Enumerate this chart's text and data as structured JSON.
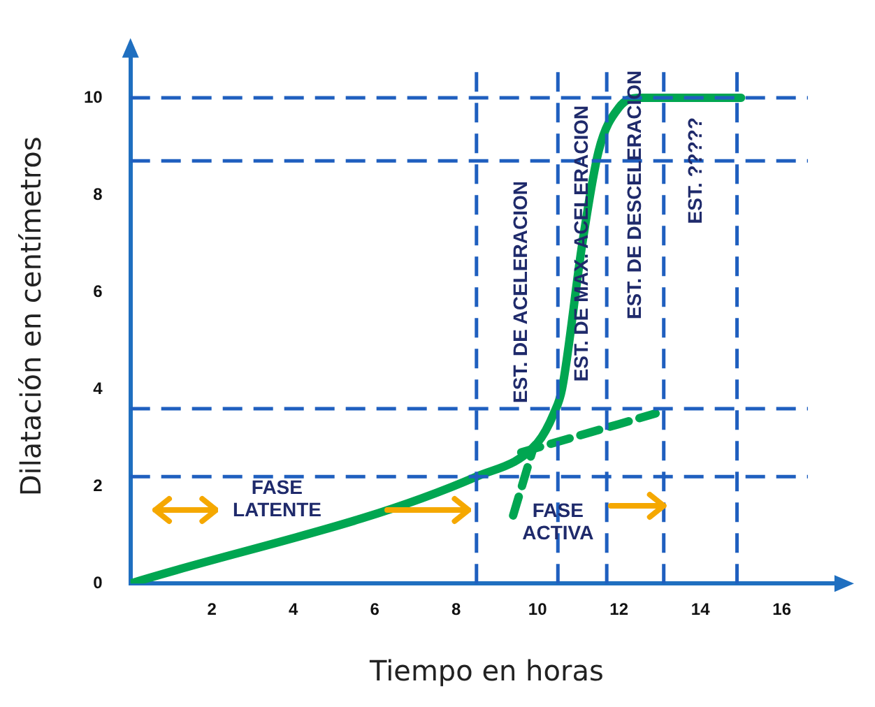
{
  "chart_data": {
    "type": "line",
    "xlabel": "Tiempo en horas",
    "ylabel": "Dilatación en centímetros",
    "xlim": [
      0,
      17.5
    ],
    "ylim": [
      0,
      11
    ],
    "xticks": [
      2,
      4,
      6,
      8,
      10,
      12,
      14,
      16
    ],
    "yticks": [
      0,
      2,
      4,
      6,
      8,
      10
    ],
    "grid": false,
    "legend": false,
    "marker": "none",
    "series": [
      {
        "color": "#00a651",
        "x": [
          0,
          8.5,
          10,
          10.4,
          10.6,
          11.1,
          11.5,
          12,
          12.5,
          15
        ],
        "values": [
          0,
          2.2,
          2.9,
          3.5,
          4,
          7,
          8.9,
          9.8,
          10,
          10
        ],
        "line_style": "solid"
      },
      {
        "color": "#00a651",
        "x": [
          9.4,
          9.9
        ],
        "values": [
          1.4,
          2.8
        ],
        "line_style": "dashed"
      },
      {
        "color": "#00a651",
        "x": [
          9.6,
          12.9
        ],
        "values": [
          2.7,
          3.5
        ],
        "line_style": "dashed"
      }
    ],
    "ref_lines": [
      {
        "axis": "y",
        "value": 10,
        "color": "#1f5fbf",
        "line_style": "dashed"
      },
      {
        "axis": "y",
        "value": 8.7,
        "color": "#1f5fbf",
        "line_style": "dashed"
      },
      {
        "axis": "y",
        "value": 3.6,
        "color": "#1f5fbf",
        "line_style": "dashed"
      },
      {
        "axis": "y",
        "value": 2.2,
        "color": "#1f5fbf",
        "line_style": "dashed"
      },
      {
        "axis": "x",
        "value": 8.5,
        "color": "#1f5fbf",
        "line_style": "dashed"
      },
      {
        "axis": "x",
        "value": 10.5,
        "color": "#1f5fbf",
        "line_style": "dashed"
      },
      {
        "axis": "x",
        "value": 11.7,
        "color": "#1f5fbf",
        "line_style": "dashed"
      },
      {
        "axis": "x",
        "value": 13.1,
        "color": "#1f5fbf",
        "line_style": "dashed"
      },
      {
        "axis": "x",
        "value": 14.9,
        "color": "#1f5fbf",
        "line_style": "dashed"
      }
    ],
    "annotations": [
      "FASE LATENTE",
      {
        "text": "FASE ACTIVA",
        "x": 13.1,
        "y": 1.6
      },
      "EST. DE ACELERACION",
      "EST. DE MAX. ACELERACION",
      "EST. DE DESCELERACION",
      "EST. ?????"
    ]
  }
}
